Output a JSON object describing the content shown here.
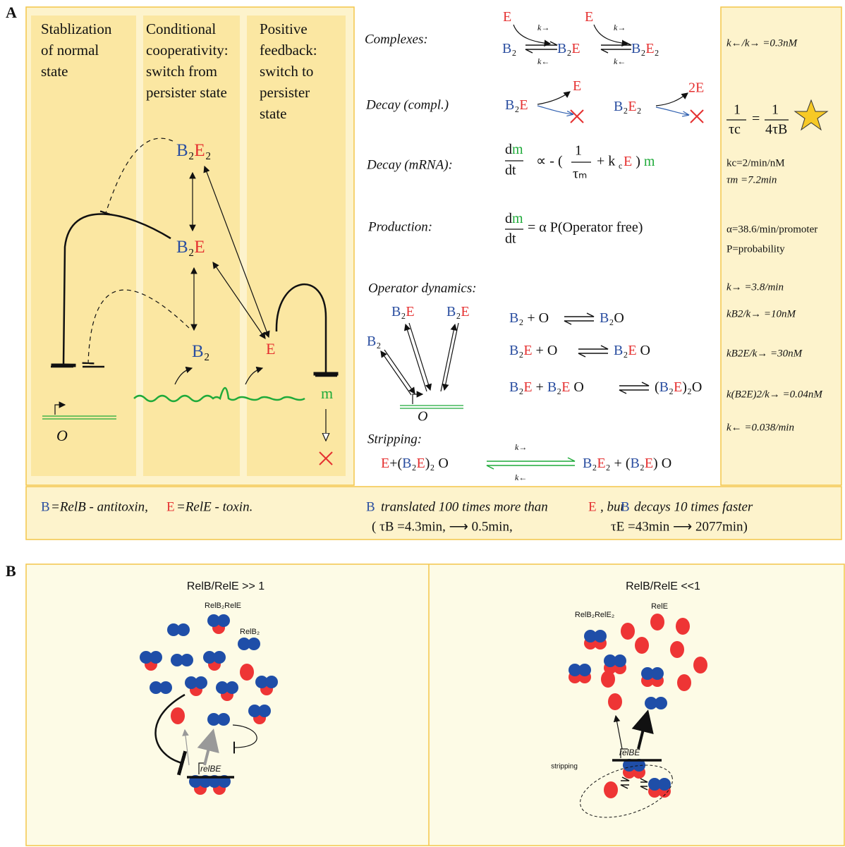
{
  "panel_a": {
    "label": "A",
    "columns": [
      [
        "Stablization",
        "of normal",
        "state"
      ],
      [
        "Conditional",
        "cooperativity:",
        "switch from",
        "persister state"
      ],
      [
        "Positive",
        "feedback:",
        "switch to",
        "persister",
        "state"
      ]
    ],
    "network": {
      "b2e2": "B₂E₂",
      "b2e": "B₂E",
      "b2": "B₂",
      "e": "E",
      "m": "m",
      "operator": "O"
    },
    "complexes": {
      "label": "Complexes:",
      "e_top_1": "E",
      "e_top_2": "E",
      "b2": "B₂",
      "b2e": "B₂E",
      "b2e2": "B₂E₂",
      "k_on_1": "k→",
      "k_off_1": "k←",
      "k_on_2": "k→",
      "k_off_2": "k←"
    },
    "decay_complexes": {
      "label": "Decay (compl.)",
      "b2e": "B₂E",
      "e": "E",
      "b2e2": "B₂E₂",
      "two_e": "2E"
    },
    "decay_mrna": {
      "label": "Decay (mRNA):",
      "lhs_num": "dm",
      "lhs_den": "dt",
      "mid": "∝ - (",
      "frac_num": "1",
      "frac_den": "τₘ",
      "rest_a": "+ k",
      "rest_sub": "c",
      "rest_b": "E ) m"
    },
    "production": {
      "label": "Production:",
      "lhs_num": "dm",
      "lhs_den": "dt",
      "rhs": "= α P(Operator free)"
    },
    "operator_dynamics": {
      "label": "Operator dynamics:",
      "b2e_1": "B₂E",
      "b2e_2": "B₂E",
      "b2": "B₂",
      "operator": "O",
      "reactions": [
        {
          "lhs": "B₂ + O",
          "rhs": "B₂O"
        },
        {
          "lhs": "B₂E + O",
          "rhs": "B₂E O"
        },
        {
          "lhs": "B₂E + B₂E O",
          "rhs": "(B₂E)₂O"
        }
      ]
    },
    "stripping": {
      "label": "Stripping:",
      "lhs": "E+(B₂E)₂ O",
      "rhs": "B₂E₂ + (B₂E) O",
      "k_on": "k→",
      "k_off": "k←"
    },
    "time_ratio": {
      "num_1": "1",
      "den_1": "τc",
      "eq": "=",
      "num_2": "1",
      "den_2": "4τB"
    },
    "parameters": [
      "k←/k→ =0.3nM",
      "kc=2/min/nM",
      "τm =7.2min",
      "α=38.6/min/promoter",
      "P=probability",
      "k→ =3.8/min",
      "kB2/k→ =10nM",
      "kB2E/k→ =30nM",
      "k(B2E)2/k→ =0.04nM",
      "k← =0.038/min"
    ]
  },
  "legend_note": {
    "b": "B",
    "b_def": "=RelB - antitoxin,",
    "e": "E",
    "e_def": "=RelE - toxin.",
    "b_2": "B",
    "text_1": "translated 100 times more than",
    "e_2": "E",
    "text_2": ", but",
    "b_3": "B",
    "text_3": "decays 10 times faster",
    "tau_b": "( τB =4.3min, ⟶ 0.5min,",
    "tau_e": "τE =43min ⟶ 2077min)"
  },
  "panel_b": {
    "label": "B",
    "left": {
      "title": "RelB/RelE >> 1",
      "complex_label": "RelB₂RelE",
      "dimer_label": "RelB₂",
      "gene": "relBE"
    },
    "right": {
      "title": "RelB/RelE <<1",
      "complex_label": "RelB₂RelE₂",
      "toxin_label": "RelE",
      "gene": "relBE",
      "stripping": "stripping"
    }
  }
}
